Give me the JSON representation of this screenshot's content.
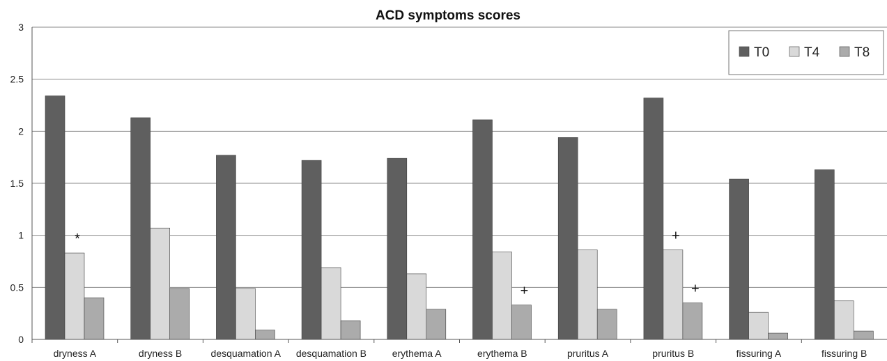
{
  "chart_data": {
    "type": "bar",
    "title": "ACD symptoms scores",
    "xlabel": "",
    "ylabel": "",
    "ylim": [
      0,
      3
    ],
    "yticks": [
      "0",
      "0.5",
      "1",
      "1.5",
      "2",
      "2.5",
      "3"
    ],
    "grid": true,
    "legend_position": "top-right",
    "categories": [
      "dryness A",
      "dryness B",
      "desquamation A",
      "desquamation B",
      "erythema A",
      "erythema B",
      "pruritus A",
      "pruritus B",
      "fissuring A",
      "fissuring B"
    ],
    "series": [
      {
        "name": "T0",
        "color": "#5f5f5f",
        "values": [
          2.34,
          2.13,
          1.77,
          1.72,
          1.74,
          2.11,
          1.94,
          2.32,
          1.54,
          1.63
        ]
      },
      {
        "name": "T4",
        "color": "#d9d9d9",
        "values": [
          0.83,
          1.07,
          0.49,
          0.69,
          0.63,
          0.84,
          0.86,
          0.86,
          0.26,
          0.37
        ]
      },
      {
        "name": "T8",
        "color": "#ababab",
        "values": [
          0.4,
          0.49,
          0.09,
          0.18,
          0.29,
          0.33,
          0.29,
          0.35,
          0.06,
          0.08
        ]
      }
    ],
    "annotations": [
      {
        "text": "*",
        "category": "dryness A",
        "series": "T4"
      },
      {
        "text": "+",
        "category": "erythema B",
        "series": "T8"
      },
      {
        "text": "+",
        "category": "pruritus B",
        "series": "T4"
      },
      {
        "text": "+",
        "category": "pruritus B",
        "series": "T8"
      }
    ]
  }
}
